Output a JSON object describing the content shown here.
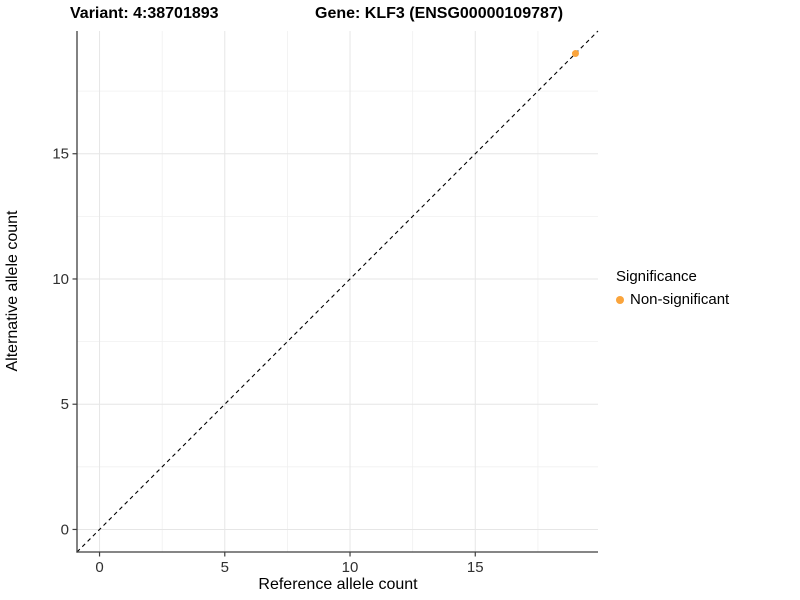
{
  "title": {
    "variant": "Variant: 4:38701893",
    "gene": "Gene: KLF3 (ENSG00000109787)"
  },
  "chart_data": {
    "type": "scatter",
    "title": "Variant: 4:38701893   Gene: KLF3 (ENSG00000109787)",
    "xlabel": "Reference allele count",
    "ylabel": "Alternative allele count",
    "xlim": [
      -0.9,
      19.9
    ],
    "ylim": [
      -0.9,
      19.9
    ],
    "x_ticks": [
      0,
      5,
      10,
      15
    ],
    "y_ticks": [
      0,
      5,
      10,
      15
    ],
    "x_minor_ticks": [
      2.5,
      7.5,
      12.5,
      17.5
    ],
    "y_minor_ticks": [
      2.5,
      7.5,
      12.5,
      17.5
    ],
    "grid": true,
    "legend_position": "right",
    "series": [
      {
        "name": "Non-significant",
        "color": "#FAA43C",
        "points": [
          {
            "x": 19,
            "y": 19
          }
        ]
      }
    ],
    "reference_line": {
      "slope": 1,
      "intercept": 0,
      "style": "dashed",
      "color": "#000000",
      "meaning": "y = x identity line"
    },
    "legend": {
      "title": "Significance",
      "entries": [
        {
          "label": "Non-significant",
          "color": "#FAA43C",
          "marker": "dot"
        }
      ]
    }
  },
  "colors": {
    "point": "#FAA43C",
    "grid_major": "#e6e6e6",
    "grid_minor": "#f0f0f0",
    "axis_line": "#3f3f3f",
    "tick_label": "#303030",
    "background": "#ffffff"
  }
}
